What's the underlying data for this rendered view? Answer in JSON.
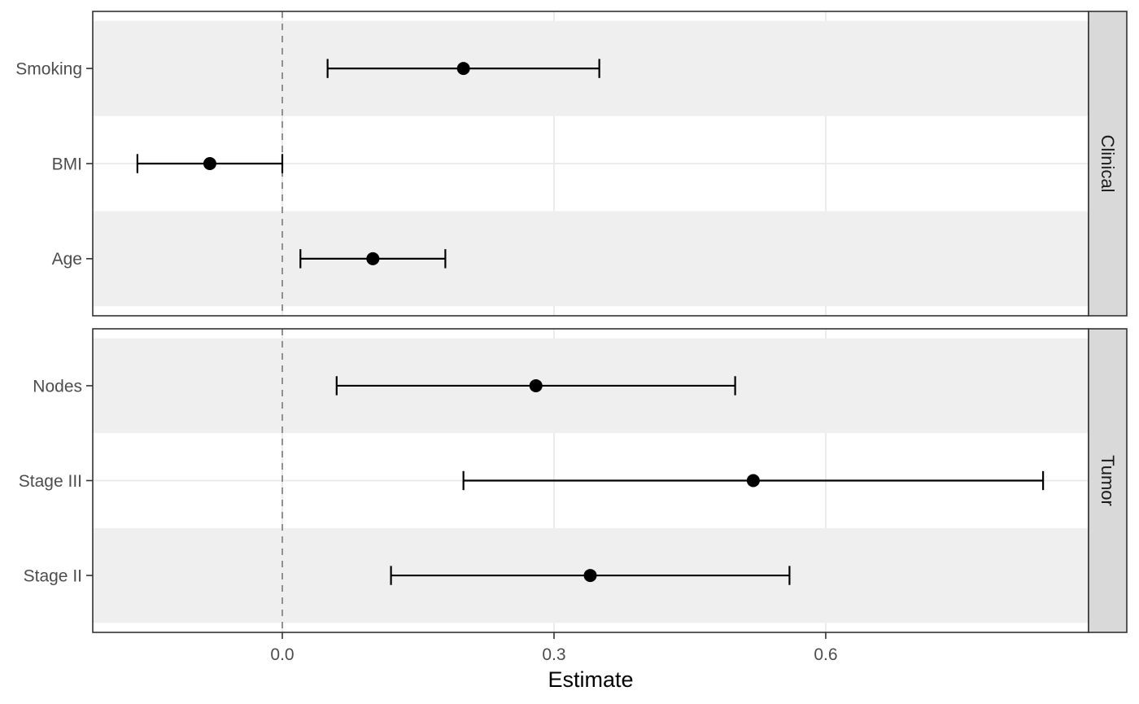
{
  "chart_data": {
    "type": "forest",
    "xlabel": "Estimate",
    "x_ticks": [
      0,
      0.3,
      0.6
    ],
    "x_tick_labels": [
      "0.0",
      "0.3",
      "0.6"
    ],
    "xlim": [
      -0.2093,
      0.8902
    ],
    "reference_line": {
      "x": 0,
      "style": "dashed"
    },
    "grid": "major",
    "facet_position": "right",
    "facets": [
      {
        "label": "Clinical",
        "rows": [
          {
            "term": "Smoking",
            "estimate": 0.2,
            "conf_low": 0.05,
            "conf_high": 0.35
          },
          {
            "term": "BMI",
            "estimate": -0.08,
            "conf_low": -0.16,
            "conf_high": 0.0
          },
          {
            "term": "Age",
            "estimate": 0.1,
            "conf_low": 0.02,
            "conf_high": 0.18
          }
        ]
      },
      {
        "label": "Tumor",
        "rows": [
          {
            "term": "Nodes",
            "estimate": 0.28,
            "conf_low": 0.06,
            "conf_high": 0.5
          },
          {
            "term": "Stage III",
            "estimate": 0.52,
            "conf_low": 0.2,
            "conf_high": 0.84
          },
          {
            "term": "Stage II",
            "estimate": 0.34,
            "conf_low": 0.12,
            "conf_high": 0.56
          }
        ]
      }
    ],
    "colors": {
      "point": "#000000",
      "errorbar": "#000000",
      "stripe": "#EFEFEF",
      "gridline": "#E9E9E9",
      "panel_border": "#333333",
      "axis_text": "#4D4D4D",
      "axis_title": "#000000",
      "strip_bg": "#D9D9D9",
      "strip_text": "#1A1A1A",
      "reference_line_color": "#858585"
    }
  }
}
